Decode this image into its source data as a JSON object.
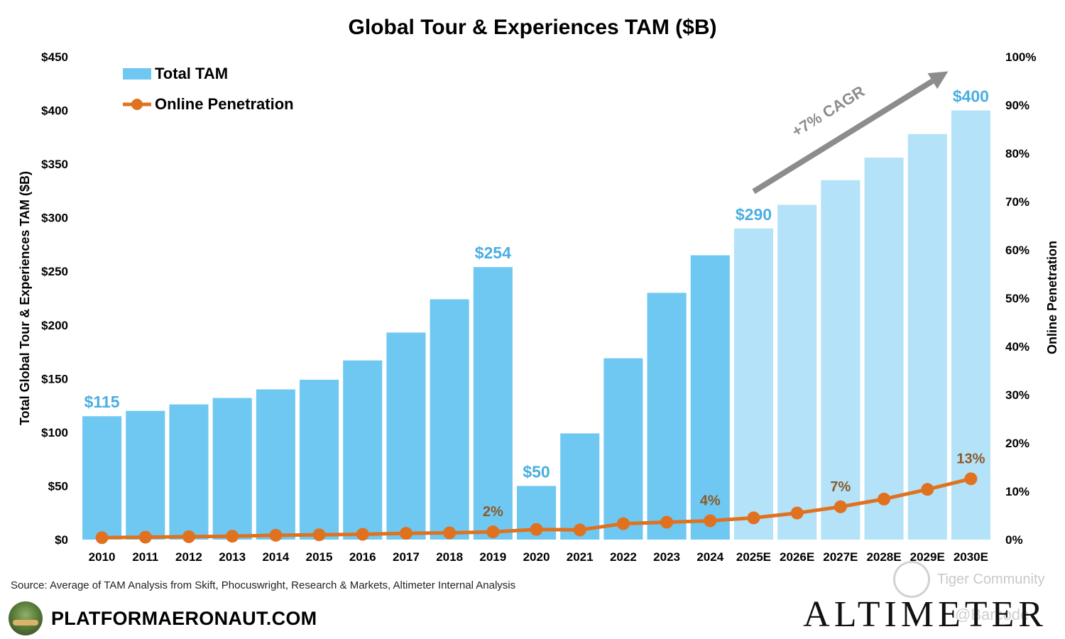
{
  "chart_data": {
    "type": "bar",
    "title": "Global Tour & Experiences TAM ($B)",
    "categories": [
      "2010",
      "2011",
      "2012",
      "2013",
      "2014",
      "2015",
      "2016",
      "2017",
      "2018",
      "2019",
      "2020",
      "2021",
      "2022",
      "2023",
      "2024",
      "2025E",
      "2026E",
      "2027E",
      "2028E",
      "2029E",
      "2030E"
    ],
    "series": [
      {
        "name": "Total TAM",
        "type": "bar",
        "axis": "left",
        "values": [
          115,
          120,
          126,
          132,
          140,
          149,
          167,
          193,
          224,
          254,
          50,
          99,
          169,
          230,
          265,
          290,
          312,
          335,
          356,
          378,
          400
        ],
        "colors": {
          "actual": "#6ec8f2",
          "estimate": "#b4e2f8"
        },
        "estimate_start_index": 15
      },
      {
        "name": "Online Penetration",
        "type": "line",
        "axis": "right",
        "values": [
          0.4,
          0.5,
          0.6,
          0.7,
          0.9,
          1.0,
          1.1,
          1.3,
          1.4,
          1.6,
          2.1,
          2.0,
          3.3,
          3.6,
          3.9,
          4.5,
          5.5,
          6.8,
          8.4,
          10.4,
          12.6
        ],
        "color": "#e0721f"
      }
    ],
    "ylabel": "Total Global Tour & Experiences TAM ($B)",
    "ylim": [
      0,
      450
    ],
    "yticks": [
      "$0",
      "$50",
      "$100",
      "$150",
      "$200",
      "$250",
      "$300",
      "$350",
      "$400",
      "$450"
    ],
    "y2label": "Online Penetration",
    "y2lim": [
      0,
      100
    ],
    "y2ticks": [
      "0%",
      "10%",
      "20%",
      "30%",
      "40%",
      "50%",
      "60%",
      "70%",
      "80%",
      "90%",
      "100%"
    ],
    "bar_labels": [
      {
        "index": 0,
        "text": "$115"
      },
      {
        "index": 9,
        "text": "$254"
      },
      {
        "index": 10,
        "text": "$50"
      },
      {
        "index": 15,
        "text": "$290"
      },
      {
        "index": 20,
        "text": "$400"
      }
    ],
    "line_labels": [
      {
        "index": 9,
        "text": "2%"
      },
      {
        "index": 14,
        "text": "4%"
      },
      {
        "index": 17,
        "text": "7%"
      },
      {
        "index": 20,
        "text": "13%"
      }
    ],
    "annotation": {
      "text": "+7% CAGR",
      "from_index": 15,
      "to_index": 20
    },
    "legend_position": "top-left",
    "grid": false
  },
  "source_text": "Source: Average of TAM Analysis from Skift, Phocuswright, Research & Markets, Altimeter Internal Analysis",
  "brand_text": "PLATFORMAERONAUT.COM",
  "altimeter_text": "ALTIMETER",
  "watermark_text": "Tiger Community",
  "watermark2_text": "@Barcode"
}
